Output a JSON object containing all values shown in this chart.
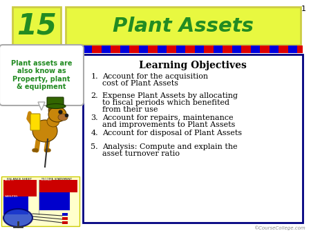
{
  "bg_color": "#ffffff",
  "slide_number": "1",
  "chapter_number": "15",
  "chapter_num_color": "#228B22",
  "chapter_num_bg": "#e8f840",
  "title": "Plant Assets",
  "title_color": "#228B22",
  "title_bg": "#e8f840",
  "callout_text": "Plant assets are\nalso know as\nProperty, plant\n& equipment",
  "callout_text_color": "#228B22",
  "callout_bg": "#ffffff",
  "learning_objectives_title": "Learning Objectives",
  "objectives": [
    "Account for the acquisition\ncost of Plant Assets",
    "Expense Plant Assets by allocating\nto fiscal periods which benefited\nfrom their use",
    "Account for repairs, maintenance\nand improvements to Plant Assets",
    "Account for disposal of Plant Assets",
    "Analysis: Compute and explain the\nasset turnover ratio"
  ],
  "obj_box_bg": "#ffffff",
  "obj_box_border": "#000080",
  "stripe_blue": "#0000dd",
  "stripe_red": "#dd0000",
  "footer": "©CourseCollege.com",
  "footer_color": "#888888",
  "title_border": "#cccc44",
  "num_border": "#cccc44"
}
